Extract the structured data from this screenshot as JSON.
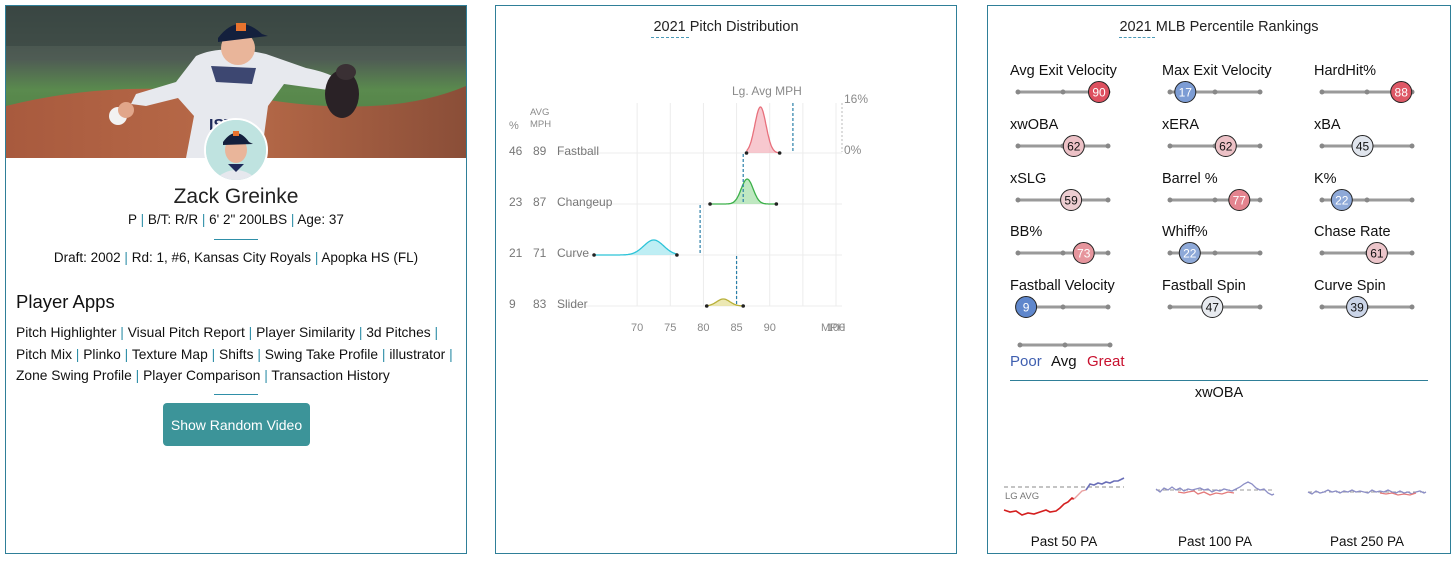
{
  "player": {
    "name": "Zack Greinke",
    "bio": {
      "pos": "P",
      "bt": "B/T: R/R",
      "size": "6' 2\" 200LBS",
      "age": "Age: 37"
    },
    "draft": {
      "label": "Draft: 2002",
      "round": "Rd: 1, #6, Kansas City Royals",
      "school": "Apopka HS (FL)"
    }
  },
  "apps": {
    "title": "Player Apps",
    "items": [
      "Pitch Highlighter",
      "Visual Pitch Report",
      "Player Similarity",
      "3d Pitches",
      "Pitch Mix",
      "Plinko",
      "Texture Map",
      "Shifts",
      "Swing Take Profile",
      "illustrator",
      "Zone Swing Profile",
      "Player Comparison",
      "Transaction History"
    ],
    "button": "Show Random Video"
  },
  "pitch_dist": {
    "title": "2021 Pitch Distribution",
    "lg_avg_label": "Lg. Avg MPH",
    "col_pct": "%",
    "col_avg_1": "AVG",
    "col_avg_2": "MPH",
    "scale_top": "16%",
    "scale_bottom": "0%",
    "x_unit": "MPH",
    "x_ticks": [
      70,
      75,
      80,
      85,
      90,
      100
    ],
    "pitches": [
      {
        "pct": "46",
        "mph": "89",
        "name": "Fastball",
        "color": "#e8707c",
        "fill": "#f4b6bf",
        "min": 86.5,
        "max": 91.5,
        "peak": 88.6,
        "sd": 0.85,
        "h": 46,
        "lg_avg": 93.5
      },
      {
        "pct": "23",
        "mph": "87",
        "name": "Changeup",
        "color": "#3cb04a",
        "fill": "#a9e0ac",
        "min": 81,
        "max": 91,
        "peak": 86.6,
        "sd": 0.9,
        "h": 25,
        "lg_avg": 86
      },
      {
        "pct": "21",
        "mph": "71",
        "name": "Curve",
        "color": "#2cc3d8",
        "fill": "#a8e8f0",
        "min": 63.5,
        "max": 76,
        "peak": 72.5,
        "sd": 1.5,
        "h": 15,
        "lg_avg": 79.5
      },
      {
        "pct": "9",
        "mph": "83",
        "name": "Slider",
        "color": "#b8b03a",
        "fill": "#e6e09a",
        "min": 80.5,
        "max": 86,
        "peak": 83,
        "sd": 1.0,
        "h": 7,
        "lg_avg": 85
      }
    ]
  },
  "percentiles": {
    "title": "2021 MLB Percentile Rankings",
    "colors": {
      "poor": "#3f5fb0",
      "great": "#c8102e"
    },
    "metrics": [
      {
        "label": "Avg Exit Velocity",
        "value": 90
      },
      {
        "label": "Max Exit Velocity",
        "value": 17
      },
      {
        "label": "HardHit%",
        "value": 88
      },
      {
        "label": "xwOBA",
        "value": 62
      },
      {
        "label": "xERA",
        "value": 62
      },
      {
        "label": "xBA",
        "value": 45
      },
      {
        "label": "xSLG",
        "value": 59
      },
      {
        "label": "Barrel %",
        "value": 77
      },
      {
        "label": "K%",
        "value": 22
      },
      {
        "label": "BB%",
        "value": 73
      },
      {
        "label": "Whiff%",
        "value": 22
      },
      {
        "label": "Chase Rate",
        "value": 61
      },
      {
        "label": "Fastball Velocity",
        "value": 9
      },
      {
        "label": "Fastball Spin",
        "value": 47
      },
      {
        "label": "Curve Spin",
        "value": 39
      }
    ],
    "legend": {
      "poor": "Poor",
      "avg": "Avg",
      "great": "Great"
    }
  },
  "xwoba": {
    "title": "xwOBA",
    "lg_avg_label": "LG AVG",
    "windows": [
      "Past 50 PA",
      "Past 100 PA",
      "Past 250 PA"
    ]
  }
}
